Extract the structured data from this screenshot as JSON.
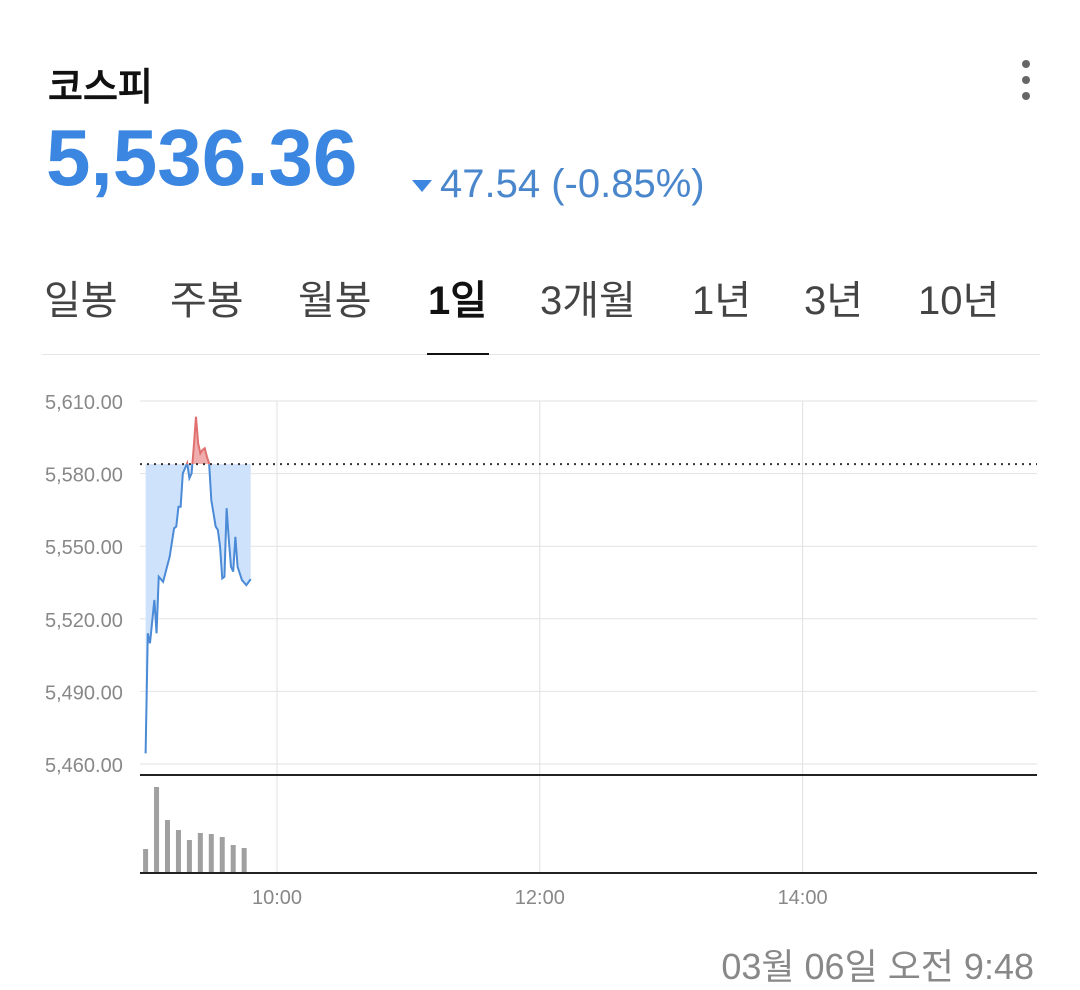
{
  "header": {
    "title": "코스피",
    "price": "5,536.36",
    "change": "47.54 (-0.85%)",
    "direction": "down",
    "more_icon": "more-vertical-icon"
  },
  "tabs": [
    {
      "label": "일봉"
    },
    {
      "label": "주봉"
    },
    {
      "label": "월봉"
    },
    {
      "label": "1일",
      "active": true
    },
    {
      "label": "3개월"
    },
    {
      "label": "1년"
    },
    {
      "label": "3년"
    },
    {
      "label": "10년"
    }
  ],
  "timestamp": "03월 06일 오전 9:48",
  "colors": {
    "accent": "#3a86e0",
    "down": "#4a86cc",
    "up_fill": "#e88a8a",
    "down_fill": "#cfe2fb",
    "volume": "#a0a0a0"
  },
  "chart_data": {
    "type": "line",
    "ylim": [
      5460,
      5610
    ],
    "yticks": [
      "5,610.00",
      "5,580.00",
      "5,550.00",
      "5,520.00",
      "5,490.00",
      "5,460.00"
    ],
    "ytick_values": [
      5610,
      5580,
      5550,
      5520,
      5490,
      5460
    ],
    "xticks": [
      "10:00",
      "12:00",
      "14:00"
    ],
    "xlim": [
      "09:00",
      "15:47"
    ],
    "previous_close": 5583.9,
    "grid": true,
    "price": {
      "x": [
        "09:00",
        "09:01",
        "09:02",
        "09:04",
        "09:05",
        "09:06",
        "09:08",
        "09:11",
        "09:13",
        "09:14",
        "09:15",
        "09:16",
        "09:17",
        "09:19",
        "09:20",
        "09:21",
        "09:22",
        "09:23",
        "09:24",
        "09:25",
        "09:26",
        "09:27",
        "09:28",
        "09:29",
        "09:30",
        "09:32",
        "09:33",
        "09:34",
        "09:35",
        "09:36",
        "09:37",
        "09:38",
        "09:39",
        "09:40",
        "09:41",
        "09:42",
        "09:44",
        "09:46",
        "09:48"
      ],
      "y": [
        5464.4,
        5514.0,
        5509.9,
        5527.8,
        5514.0,
        5537.4,
        5535.3,
        5545.7,
        5557.4,
        5558.1,
        5566.3,
        5566.3,
        5580.1,
        5584.3,
        5578.1,
        5580.1,
        5591.1,
        5603.5,
        5592.5,
        5588.4,
        5589.8,
        5590.5,
        5587.0,
        5584.3,
        5569.1,
        5558.1,
        5556.7,
        5549.8,
        5536.7,
        5537.4,
        5565.7,
        5552.6,
        5541.5,
        5539.5,
        5553.9,
        5541.5,
        5536.0,
        5533.9,
        5536.4
      ]
    },
    "volume": {
      "x": [
        "09:00",
        "09:05",
        "09:10",
        "09:15",
        "09:20",
        "09:25",
        "09:30",
        "09:35",
        "09:40",
        "09:45"
      ],
      "values": [
        23,
        85,
        52,
        42,
        32,
        39,
        38,
        35,
        27,
        24
      ]
    }
  }
}
